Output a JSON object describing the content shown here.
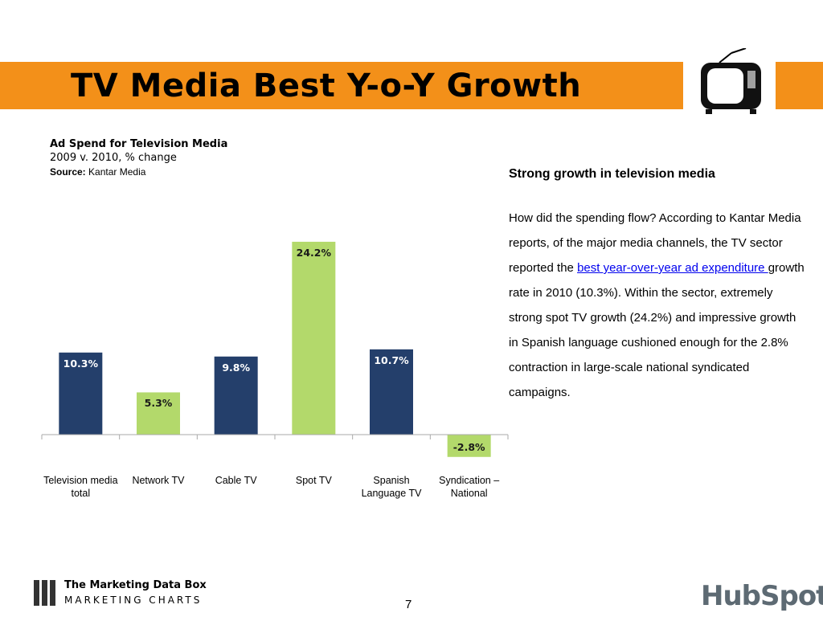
{
  "header": {
    "title": "TV Media Best Y-o-Y Growth"
  },
  "chart_data": {
    "type": "bar",
    "title": "Ad Spend for Television Media",
    "subtitle": "2009 v. 2010, % change",
    "source_label": "Source:",
    "source": "Kantar Media",
    "categories": [
      "Television media total",
      "Network TV",
      "Cable TV",
      "Spot TV",
      "Spanish Language TV",
      "Syndication – National"
    ],
    "values": [
      10.3,
      5.3,
      9.8,
      24.2,
      10.7,
      -2.8
    ],
    "value_labels": [
      "10.3%",
      "5.3%",
      "9.8%",
      "24.2%",
      "10.7%",
      "-2.8%"
    ],
    "colors": [
      "#243f6b",
      "#b3d96b",
      "#243f6b",
      "#b3d96b",
      "#243f6b",
      "#b3d96b"
    ]
  },
  "text": {
    "heading": "Strong growth in television media",
    "before": "How did the spending flow? According to Kantar Media reports, of the major media channels, the TV sector reported the ",
    "link": "best year-over-year ad expenditure ",
    "after": "growth rate in 2010 (10.3%). Within the sector, extremely strong spot TV growth (24.2%) and  impressive growth in Spanish language cushioned enough for the 2.8% contraction in large-scale national syndicated campaigns."
  },
  "footer": {
    "brand": "The Marketing Data Box",
    "brand_sub": "MARKETING CHARTS",
    "page": "7",
    "logo": "HubSpot"
  }
}
